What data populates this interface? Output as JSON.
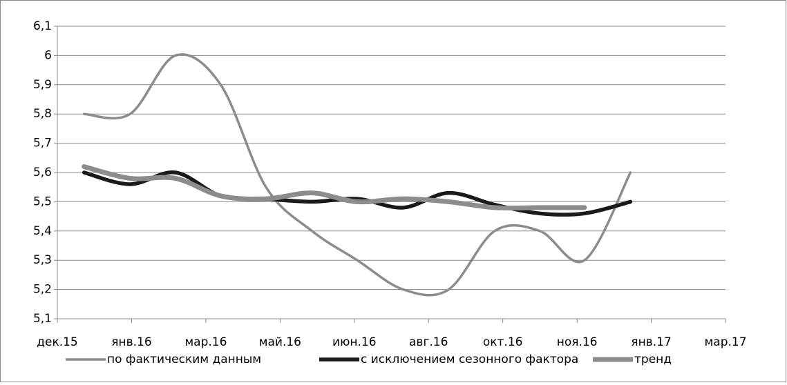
{
  "chart_data": {
    "type": "line",
    "x": [
      0.36,
      0.98,
      1.59,
      2.2,
      2.81,
      3.43,
      4.04,
      4.66,
      5.27,
      5.89,
      6.5,
      7.1,
      7.72
    ],
    "series": [
      {
        "name": "по фактическим данным",
        "color": "#8c8c8c",
        "values": [
          5.8,
          5.8,
          6.0,
          5.9,
          5.55,
          5.4,
          5.3,
          5.2,
          5.2,
          5.4,
          5.4,
          5.3,
          5.6
        ]
      },
      {
        "name": "с исключением сезонного фактора",
        "color": "#1a1a1a",
        "values": [
          5.6,
          5.56,
          5.6,
          5.52,
          5.51,
          5.5,
          5.51,
          5.48,
          5.53,
          5.49,
          5.46,
          5.46,
          5.5
        ]
      },
      {
        "name": "тренд",
        "color": "#8c8c8c",
        "values": [
          5.62,
          5.58,
          5.58,
          5.52,
          5.51,
          5.53,
          5.5,
          5.51,
          5.5,
          5.48,
          5.48,
          5.48,
          null
        ]
      }
    ],
    "xlim": [
      0,
      9
    ],
    "xticks": [
      {
        "value": 0,
        "label": "дек.15"
      },
      {
        "value": 1,
        "label": "янв.16"
      },
      {
        "value": 2,
        "label": "мар.16"
      },
      {
        "value": 3,
        "label": "май.16"
      },
      {
        "value": 4,
        "label": "июн.16"
      },
      {
        "value": 5,
        "label": "авг.16"
      },
      {
        "value": 6,
        "label": "окт.16"
      },
      {
        "value": 7,
        "label": "ноя.16"
      },
      {
        "value": 8,
        "label": "янв.17"
      },
      {
        "value": 9,
        "label": "мар.17"
      }
    ],
    "ylim": [
      5.1,
      6.1
    ],
    "yticks": [
      {
        "value": 5.1,
        "label": "5,1"
      },
      {
        "value": 5.2,
        "label": "5,2"
      },
      {
        "value": 5.3,
        "label": "5,3"
      },
      {
        "value": 5.4,
        "label": "5,4"
      },
      {
        "value": 5.5,
        "label": "5,5"
      },
      {
        "value": 5.6,
        "label": "5,6"
      },
      {
        "value": 5.7,
        "label": "5,7"
      },
      {
        "value": 5.8,
        "label": "5,8"
      },
      {
        "value": 5.9,
        "label": "5,9"
      },
      {
        "value": 6,
        "label": "6"
      },
      {
        "value": 6.1,
        "label": "6,1"
      }
    ],
    "grid": true,
    "legend": "bottom"
  }
}
